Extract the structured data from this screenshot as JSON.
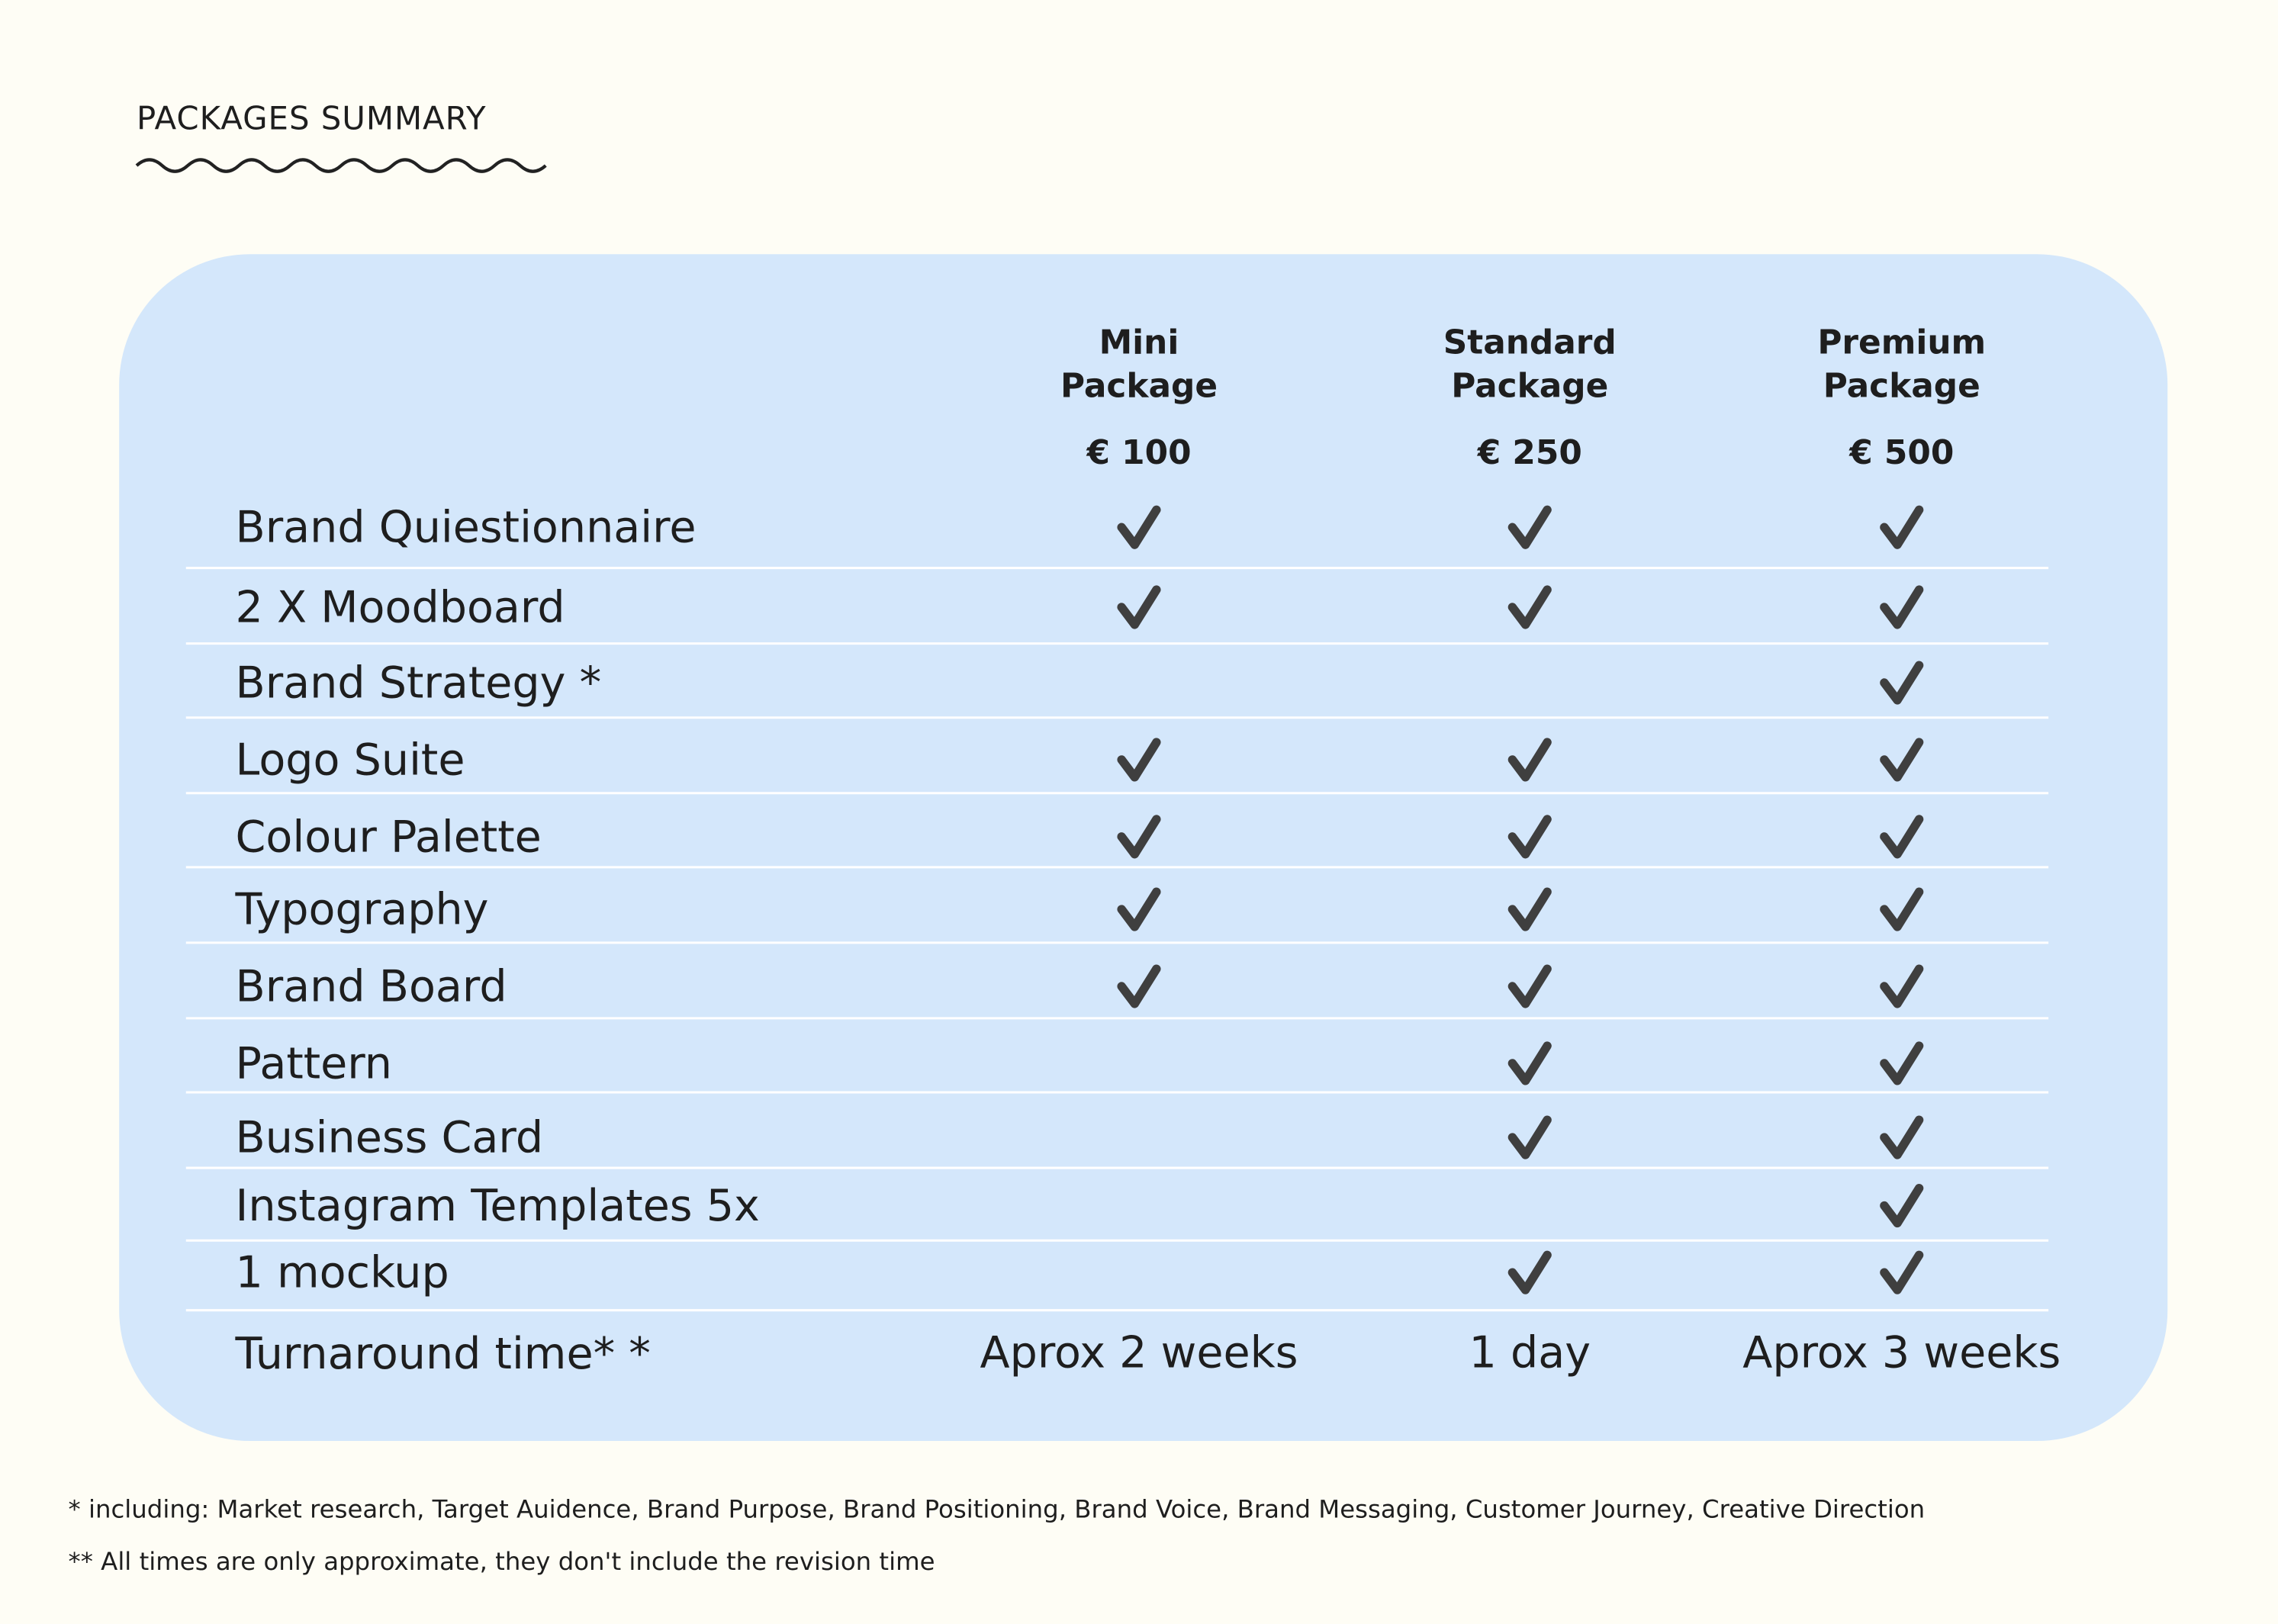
{
  "header": {
    "title": "PACKAGES SUMMARY"
  },
  "table": {
    "columns": [
      {
        "name_lines": [
          "Mini",
          "Package"
        ],
        "price": "€ 100"
      },
      {
        "name_lines": [
          "Standard",
          "Package"
        ],
        "price": "€ 250"
      },
      {
        "name_lines": [
          "Premium",
          "Package"
        ],
        "price": "€ 500"
      }
    ],
    "rows": [
      {
        "label": "Brand Quiestionnaire",
        "checks": [
          true,
          true,
          true
        ]
      },
      {
        "label": "2 X Moodboard",
        "checks": [
          true,
          true,
          true
        ]
      },
      {
        "label": "Brand Strategy *",
        "checks": [
          false,
          false,
          true
        ]
      },
      {
        "label": "Logo Suite",
        "checks": [
          true,
          true,
          true
        ]
      },
      {
        "label": "Colour Palette",
        "checks": [
          true,
          true,
          true
        ]
      },
      {
        "label": "Typography",
        "checks": [
          true,
          true,
          true
        ]
      },
      {
        "label": "Brand Board",
        "checks": [
          true,
          true,
          true
        ]
      },
      {
        "label": "Pattern",
        "checks": [
          false,
          true,
          true
        ]
      },
      {
        "label": "Business Card",
        "checks": [
          false,
          true,
          true
        ]
      },
      {
        "label": "Instagram Templates 5x",
        "checks": [
          false,
          false,
          true
        ]
      },
      {
        "label": "1 mockup",
        "checks": [
          false,
          true,
          true
        ]
      }
    ],
    "turnaround": {
      "label": "Turnaround time* *",
      "values": [
        "Aprox 2 weeks",
        "1 day",
        "Aprox 3 weeks"
      ]
    }
  },
  "footnotes": [
    "* including: Market research, Target Auidence, Brand Purpose, Brand Positioning, Brand Voice, Brand Messaging, Customer Journey, Creative Direction",
    "** All times are only approximate, they don't include the revision time"
  ]
}
